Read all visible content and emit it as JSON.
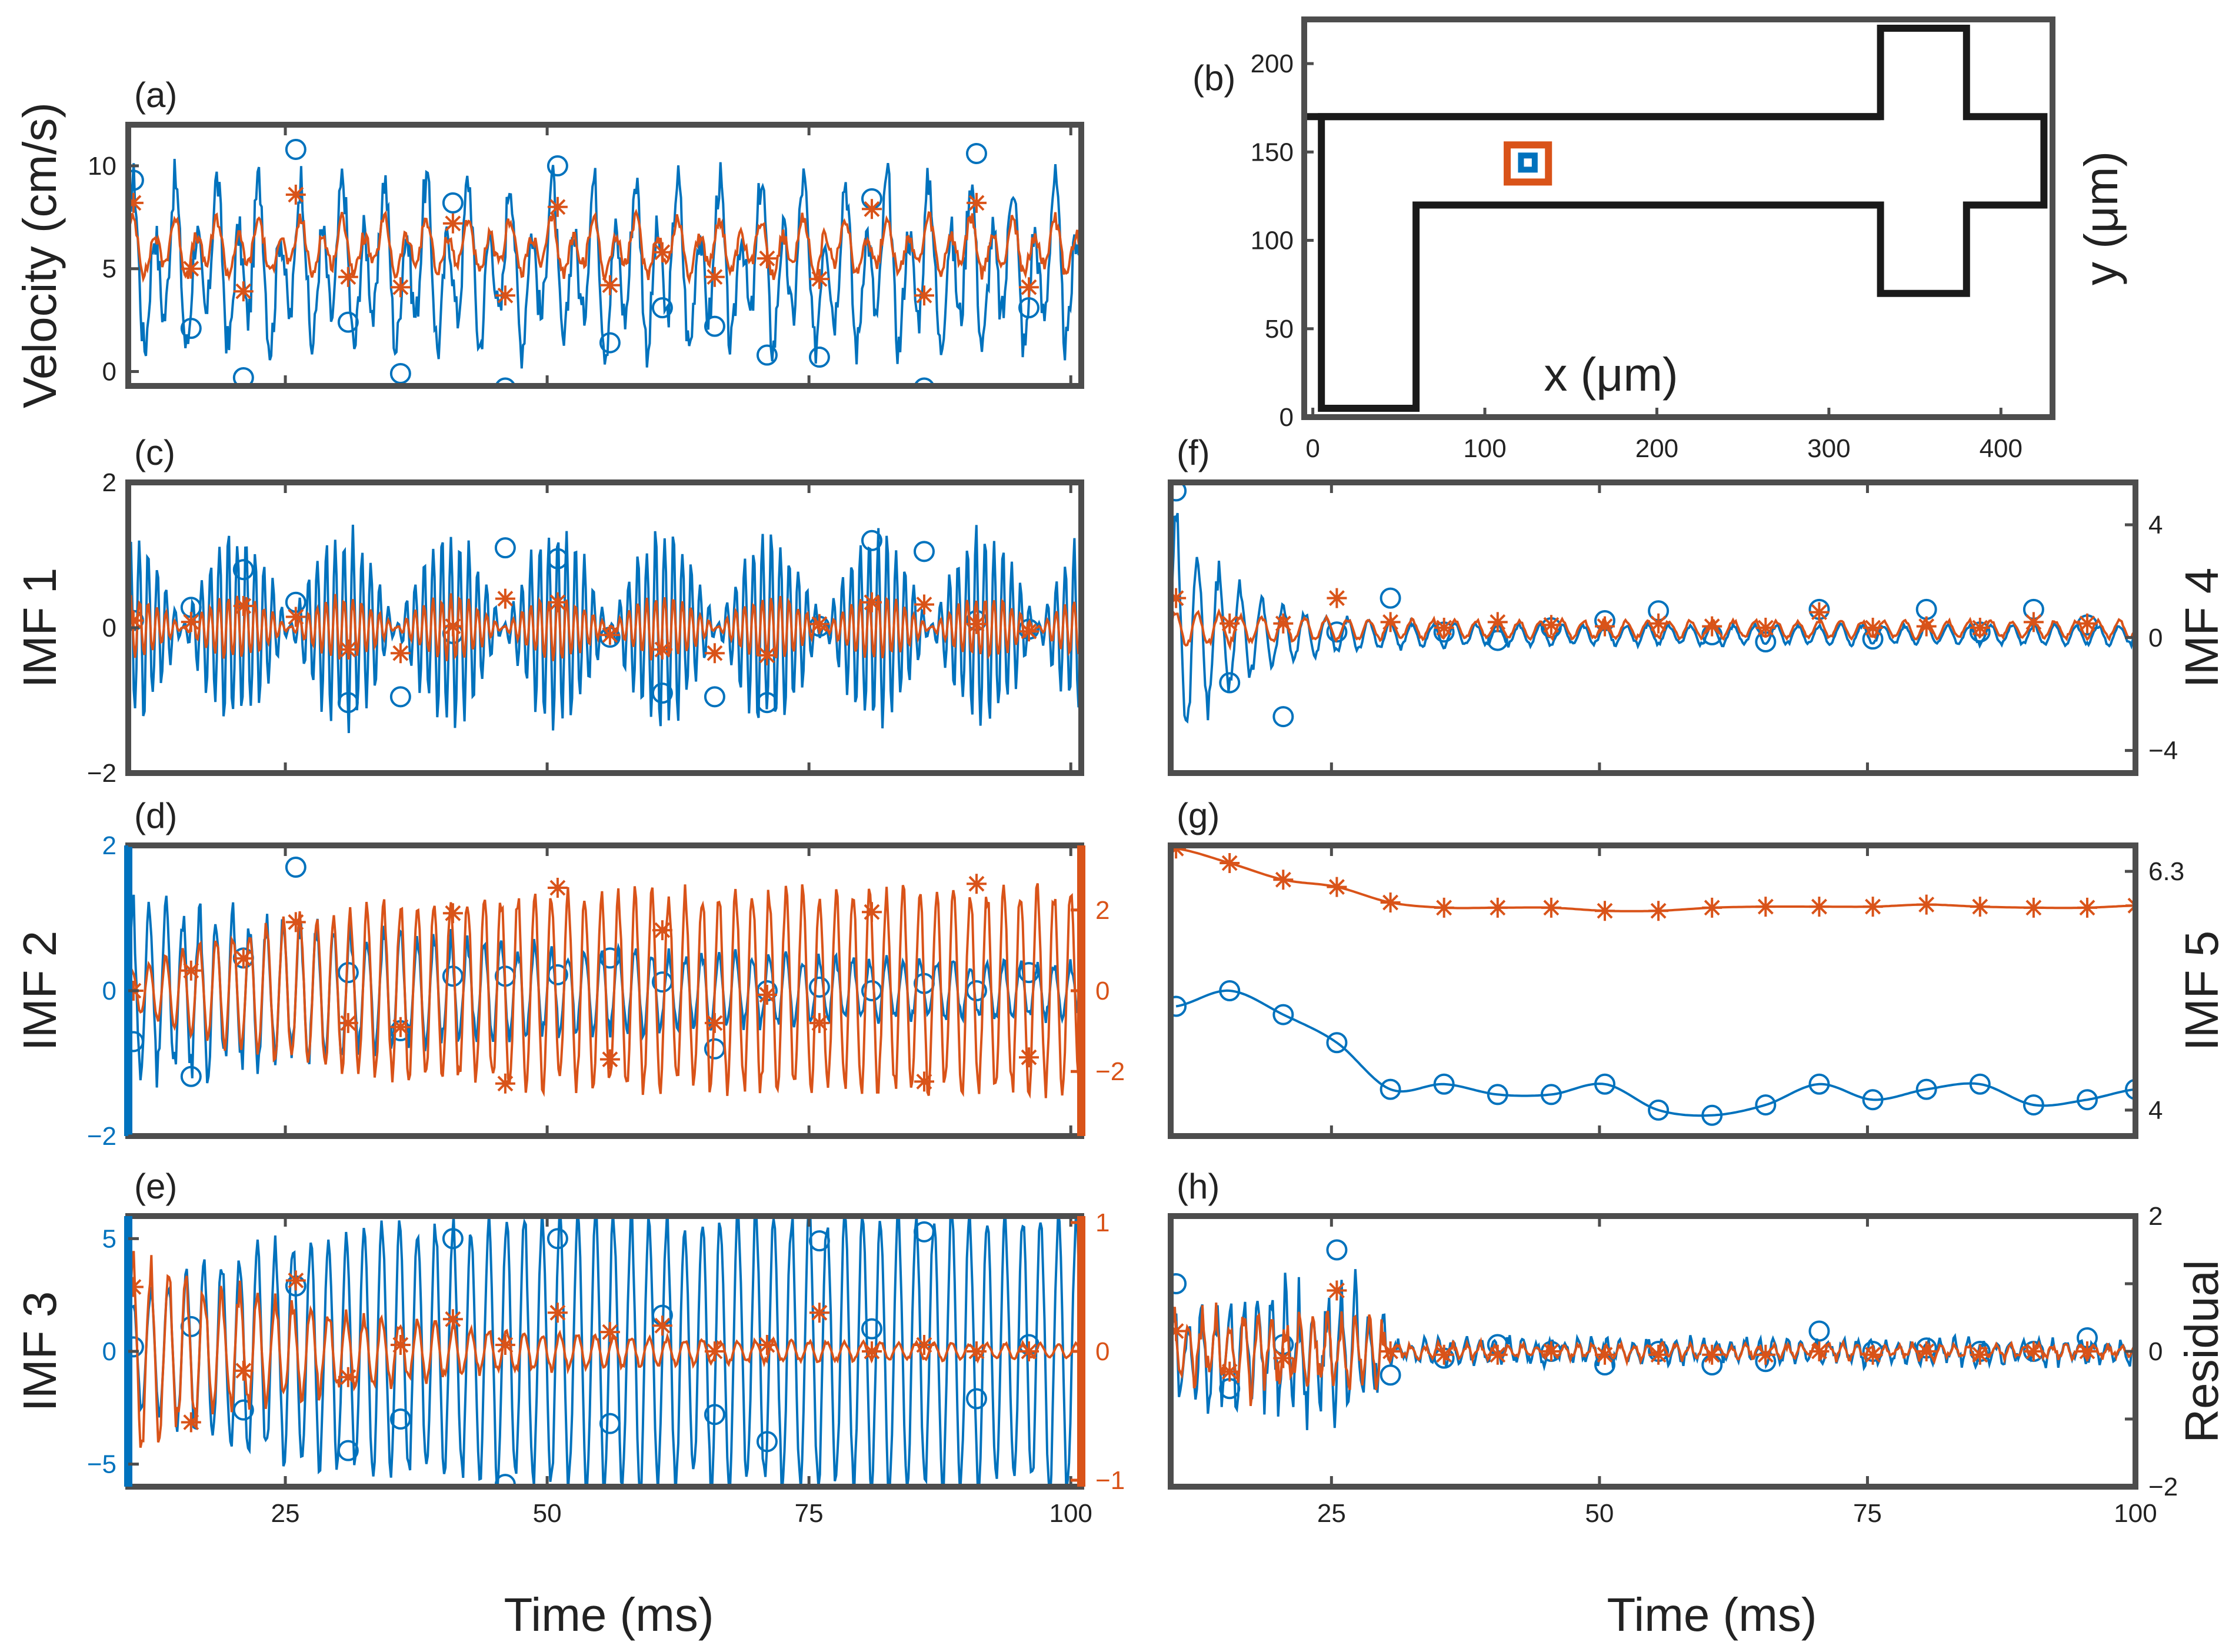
{
  "figure": {
    "colors": {
      "blue": "#0072BD",
      "orange": "#D95319",
      "axes": "#4D4D4D",
      "geometry": "#1A1A1A"
    },
    "x_label_left": "Time (ms)",
    "x_label_right": "Time (ms)"
  },
  "chart_data": [
    {
      "id": "a",
      "panel_label": "(a)",
      "type": "line",
      "ylabel": "Velocity (cm/s)",
      "xlim": [
        10,
        101
      ],
      "ylim": [
        -0.7,
        12
      ],
      "yticks": [
        0,
        5,
        10
      ],
      "ytick_labels": [
        "0",
        "5",
        "10"
      ],
      "xticks": [
        25,
        50,
        75,
        100
      ],
      "xtick_labels": [],
      "series": [
        {
          "color": "blue",
          "marker": "circle",
          "kind": "osc",
          "base": 5,
          "amp": 6,
          "period": 2.0,
          "marker_x": [
            10.5,
            16,
            21,
            26,
            31,
            36,
            41,
            46,
            51,
            56,
            61,
            66,
            71,
            76,
            81,
            86,
            91,
            96
          ],
          "marker_y": [
            9.3,
            2.1,
            -0.3,
            10.8,
            2.4,
            -0.1,
            8.2,
            -0.8,
            10.0,
            1.4,
            3.1,
            2.2,
            0.8,
            0.7,
            8.4,
            -0.8,
            10.6,
            3.1
          ]
        },
        {
          "color": "orange",
          "marker": "star",
          "kind": "osc",
          "base": 6.0,
          "amp": 2.0,
          "period": 2.0,
          "marker_x": [
            10.5,
            16,
            21,
            26,
            31,
            36,
            41,
            46,
            51,
            56,
            61,
            66,
            71,
            76,
            81,
            86,
            91,
            96
          ],
          "marker_y": [
            8.2,
            5.0,
            3.9,
            8.6,
            4.6,
            4.1,
            7.2,
            3.7,
            8.0,
            4.2,
            5.8,
            4.6,
            5.5,
            4.5,
            7.9,
            3.7,
            8.2,
            4.1
          ]
        }
      ]
    },
    {
      "id": "b",
      "panel_label": "(b)",
      "type": "diagram",
      "xlabel": "x (μm)",
      "ylabel": "y (μm)",
      "xlim": [
        -5,
        430
      ],
      "ylim": [
        0,
        225
      ],
      "xticks": [
        0,
        100,
        200,
        300,
        400
      ],
      "xtick_labels": [
        "0",
        "100",
        "200",
        "300",
        "400"
      ],
      "yticks": [
        0,
        50,
        100,
        150,
        200
      ],
      "ytick_labels": [
        "0",
        "50",
        "100",
        "150",
        "200"
      ],
      "outline": [
        [
          5,
          5
        ],
        [
          60,
          5
        ],
        [
          60,
          120
        ],
        [
          330,
          120
        ],
        [
          330,
          70
        ],
        [
          380,
          70
        ],
        [
          380,
          120
        ],
        [
          425,
          120
        ],
        [
          425,
          170
        ],
        [
          380,
          170
        ],
        [
          380,
          220
        ],
        [
          330,
          220
        ],
        [
          330,
          170
        ],
        [
          5,
          170
        ]
      ],
      "top_line_y": 170,
      "probe_outer": {
        "x": [
          113,
          137
        ],
        "y": [
          133,
          154
        ]
      },
      "probe_inner": {
        "x": [
          121,
          129
        ],
        "y": [
          140,
          148
        ]
      }
    },
    {
      "id": "c",
      "panel_label": "(c)",
      "type": "line",
      "ylabel": "IMF 1",
      "xlim": [
        10,
        101
      ],
      "ylim": [
        -2,
        2
      ],
      "yticks": [
        -2,
        0,
        2
      ],
      "ytick_labels": [
        "−2",
        "0",
        "2"
      ],
      "xticks": [
        25,
        50,
        75,
        100
      ],
      "xtick_labels": [],
      "series": [
        {
          "color": "blue",
          "marker": "circle",
          "kind": "beat",
          "amp": 1.3,
          "period": 0.85,
          "beat_period": 10.2,
          "marker_x": [
            10.5,
            16,
            21,
            26,
            31,
            36,
            41,
            46,
            51,
            56,
            61,
            66,
            71,
            76,
            81,
            86,
            91,
            96
          ],
          "marker_y": [
            0.1,
            0.28,
            0.8,
            0.35,
            -1.03,
            -0.95,
            -0.08,
            1.1,
            0.95,
            -0.13,
            -0.9,
            -0.95,
            -1.03,
            0.02,
            1.2,
            1.05,
            0.1,
            -0.02
          ]
        },
        {
          "color": "orange",
          "marker": "star",
          "kind": "beat",
          "amp": 0.42,
          "period": 0.85,
          "beat_period": 10.2,
          "marker_x": [
            10.5,
            16,
            21,
            26,
            31,
            36,
            41,
            46,
            51,
            56,
            61,
            66,
            71,
            76,
            81,
            86,
            91,
            96
          ],
          "marker_y": [
            0.1,
            0.08,
            0.3,
            0.15,
            -0.3,
            -0.35,
            0.02,
            0.4,
            0.35,
            -0.1,
            -0.3,
            -0.35,
            -0.38,
            0.05,
            0.35,
            0.32,
            0.05,
            -0.05
          ]
        }
      ]
    },
    {
      "id": "d",
      "panel_label": "(d)",
      "type": "line",
      "ylabel": "IMF 2",
      "xlim": [
        10,
        101
      ],
      "ylim": [
        -2,
        2
      ],
      "yticks": [
        -2,
        0,
        2
      ],
      "ytick_labels": [
        "−2",
        "0",
        "2"
      ],
      "y2lim": [
        -3.6,
        3.6
      ],
      "y2ticks": [
        -2,
        0,
        2
      ],
      "y2tick_labels": [
        "−2",
        "0",
        "2"
      ],
      "xticks": [
        25,
        50,
        75,
        100
      ],
      "xtick_labels": [],
      "series": [
        {
          "color": "blue",
          "marker": "circle",
          "kind": "decay",
          "amp_start": 1.3,
          "amp_end": 0.3,
          "tau": 35,
          "period": 1.6,
          "marker_x": [
            10.5,
            16,
            21,
            26,
            31,
            36,
            41,
            46,
            51,
            56,
            61,
            66,
            71,
            76,
            81,
            86,
            91,
            96
          ],
          "marker_y": [
            -0.7,
            -1.18,
            0.45,
            1.7,
            0.25,
            -0.55,
            0.2,
            0.2,
            0.22,
            0.45,
            0.12,
            -0.8,
            0.0,
            0.05,
            0.0,
            0.1,
            0.0,
            0.25
          ]
        },
        {
          "color": "orange",
          "marker": "star",
          "axis": "right",
          "kind": "grow",
          "amp_start": 0.4,
          "amp_end": 2.5,
          "tau": 15,
          "period": 1.6,
          "marker_x": [
            10.5,
            16,
            21,
            26,
            31,
            36,
            41,
            46,
            51,
            56,
            61,
            66,
            71,
            76,
            81,
            86,
            91,
            96
          ],
          "marker_y": [
            0.0,
            0.5,
            0.8,
            1.7,
            -0.8,
            -0.9,
            1.92,
            -2.3,
            2.55,
            -1.7,
            1.5,
            -0.8,
            -0.1,
            -0.8,
            1.95,
            -2.25,
            2.65,
            -1.65
          ]
        }
      ]
    },
    {
      "id": "e",
      "panel_label": "(e)",
      "type": "line",
      "ylabel": "IMF 3",
      "xlim": [
        10,
        101
      ],
      "ylim": [
        -6,
        6
      ],
      "yticks": [
        -5,
        0,
        5
      ],
      "ytick_labels": [
        "−5",
        "0",
        "5"
      ],
      "y2lim": [
        -1.05,
        1.05
      ],
      "y2ticks": [
        -1,
        0,
        1
      ],
      "y2tick_labels": [
        "−1",
        "0",
        "1"
      ],
      "xticks": [
        25,
        50,
        75,
        100
      ],
      "xtick_labels": [
        "25",
        "50",
        "75",
        "100"
      ],
      "series": [
        {
          "color": "blue",
          "marker": "circle",
          "kind": "grow",
          "amp_start": 2.2,
          "amp_end": 6.2,
          "tau": 14,
          "period": 1.7,
          "marker_x": [
            10.5,
            16,
            21,
            26,
            31,
            36,
            41,
            46,
            51,
            56,
            61,
            66,
            71,
            76,
            81,
            86,
            91,
            96
          ],
          "marker_y": [
            0.2,
            1.1,
            -2.6,
            2.9,
            -4.4,
            -3.0,
            5.0,
            -5.9,
            5.0,
            -3.2,
            1.6,
            -2.8,
            -4.0,
            4.9,
            1.0,
            5.3,
            -2.1,
            0.3
          ]
        },
        {
          "color": "orange",
          "marker": "star",
          "axis": "right",
          "kind": "decay",
          "amp_start": 0.75,
          "amp_end": 0.05,
          "tau": 20,
          "period": 1.7,
          "marker_x": [
            10.5,
            16,
            21,
            26,
            31,
            36,
            41,
            46,
            51,
            56,
            61,
            66,
            71,
            76,
            81,
            86,
            91,
            96
          ],
          "marker_y": [
            0.5,
            -0.55,
            -0.15,
            0.55,
            -0.2,
            0.05,
            0.25,
            0.05,
            0.3,
            0.15,
            0.2,
            0.0,
            0.05,
            0.3,
            0.0,
            0.05,
            0.0,
            0.0
          ]
        }
      ]
    },
    {
      "id": "f",
      "panel_label": "(f)",
      "type": "line",
      "ylabel": "IMF 4",
      "yaxis_side": "right",
      "xlim": [
        10,
        100
      ],
      "ylim": [
        -4.8,
        5.5
      ],
      "yticks": [
        -4,
        0,
        4
      ],
      "ytick_labels": [
        "−4",
        "0",
        "4"
      ],
      "xticks": [
        25,
        50,
        75,
        100
      ],
      "xtick_labels": [],
      "series": [
        {
          "color": "blue",
          "marker": "circle",
          "kind": "transient",
          "base": 0.1,
          "amp_start": 4.5,
          "amp_end": 0.35,
          "tau": 6,
          "period": 2.0,
          "marker_x": [
            10.5,
            15.5,
            20.5,
            25.5,
            30.5,
            35.5,
            40.5,
            45.5,
            50.5,
            55.5,
            60.5,
            65.5,
            70.5,
            75.5,
            80.5,
            85.5,
            90.5,
            95.5
          ],
          "marker_y": [
            5.2,
            -1.6,
            -2.8,
            0.2,
            1.4,
            0.2,
            -0.1,
            0.35,
            0.6,
            0.95,
            0.1,
            -0.15,
            1.0,
            -0.05,
            1.0,
            0.2,
            1.0,
            0.45
          ]
        },
        {
          "color": "orange",
          "marker": "star",
          "kind": "transient",
          "base": 0.3,
          "amp_start": 0.7,
          "amp_end": 0.3,
          "tau": 10,
          "period": 2.0,
          "marker_x": [
            10.5,
            15.5,
            20.5,
            25.5,
            30.5,
            35.5,
            40.5,
            45.5,
            50.5,
            55.5,
            60.5,
            65.5,
            70.5,
            75.5,
            80.5,
            85.5,
            90.5,
            95.5
          ],
          "marker_y": [
            1.4,
            0.5,
            0.5,
            1.4,
            0.55,
            0.35,
            0.55,
            0.45,
            0.4,
            0.5,
            0.4,
            0.35,
            0.9,
            0.35,
            0.4,
            0.35,
            0.55,
            0.5
          ]
        }
      ]
    },
    {
      "id": "g",
      "panel_label": "(g)",
      "type": "line",
      "ylabel": "IMF 5",
      "yaxis_side": "right",
      "xlim": [
        10,
        100
      ],
      "ylim": [
        3.75,
        6.55
      ],
      "yticks": [
        4,
        6.3
      ],
      "ytick_labels": [
        "4",
        "6.3"
      ],
      "xticks": [
        25,
        50,
        75,
        100
      ],
      "xtick_labels": [],
      "series": [
        {
          "color": "blue",
          "marker": "circle",
          "kind": "smooth",
          "marker_x": [
            10.5,
            15.5,
            20.5,
            25.5,
            30.5,
            35.5,
            40.5,
            45.5,
            50.5,
            55.5,
            60.5,
            65.5,
            70.5,
            75.5,
            80.5,
            85.5,
            90.5,
            95.5,
            100
          ],
          "marker_y": [
            5.0,
            5.15,
            4.92,
            4.65,
            4.2,
            4.25,
            4.15,
            4.15,
            4.25,
            4.0,
            3.95,
            4.05,
            4.25,
            4.1,
            4.2,
            4.25,
            4.05,
            4.1,
            4.2
          ]
        },
        {
          "color": "orange",
          "marker": "star",
          "kind": "smooth",
          "marker_x": [
            10.5,
            15.5,
            20.5,
            25.5,
            30.5,
            35.5,
            40.5,
            45.5,
            50.5,
            55.5,
            60.5,
            65.5,
            70.5,
            75.5,
            80.5,
            85.5,
            90.5,
            95.5,
            100
          ],
          "marker_y": [
            6.52,
            6.38,
            6.22,
            6.15,
            6.0,
            5.95,
            5.95,
            5.95,
            5.92,
            5.92,
            5.95,
            5.96,
            5.96,
            5.96,
            5.98,
            5.96,
            5.95,
            5.95,
            5.97
          ]
        }
      ]
    },
    {
      "id": "h",
      "panel_label": "(h)",
      "type": "line",
      "ylabel": "Residual",
      "yaxis_side": "right",
      "xlim": [
        10,
        100
      ],
      "ylim": [
        -2,
        2
      ],
      "yticks": [
        -2,
        -1,
        0,
        1,
        2
      ],
      "ytick_labels": [
        "−2",
        "",
        "0",
        "",
        "2"
      ],
      "xticks": [
        25,
        50,
        75,
        100
      ],
      "xtick_labels": [
        "25",
        "50",
        "75",
        "100"
      ],
      "series": [
        {
          "color": "blue",
          "marker": "circle",
          "kind": "noisy",
          "amp_early": 0.9,
          "amp_late": 0.2,
          "cut": 30,
          "period": 1.3,
          "marker_x": [
            10.5,
            15.5,
            20.5,
            25.5,
            30.5,
            35.5,
            40.5,
            45.5,
            50.5,
            55.5,
            60.5,
            65.5,
            70.5,
            75.5,
            80.5,
            85.5,
            90.5,
            95.5
          ],
          "marker_y": [
            1.0,
            -0.55,
            0.1,
            1.5,
            -0.35,
            -0.1,
            0.1,
            0.0,
            -0.2,
            0.0,
            -0.2,
            -0.15,
            0.3,
            0.0,
            0.05,
            0.0,
            0.0,
            0.2
          ]
        },
        {
          "color": "orange",
          "marker": "star",
          "kind": "noisy",
          "amp_early": 0.6,
          "amp_late": 0.12,
          "cut": 30,
          "period": 1.3,
          "marker_x": [
            10.5,
            15.5,
            20.5,
            25.5,
            30.5,
            35.5,
            40.5,
            45.5,
            50.5,
            55.5,
            60.5,
            65.5,
            70.5,
            75.5,
            80.5,
            85.5,
            90.5,
            95.5
          ],
          "marker_y": [
            0.3,
            -0.3,
            -0.1,
            0.9,
            0.0,
            -0.05,
            -0.05,
            0.0,
            -0.05,
            -0.05,
            -0.05,
            -0.05,
            0.0,
            -0.05,
            0.0,
            -0.05,
            0.0,
            0.0
          ]
        }
      ]
    }
  ]
}
